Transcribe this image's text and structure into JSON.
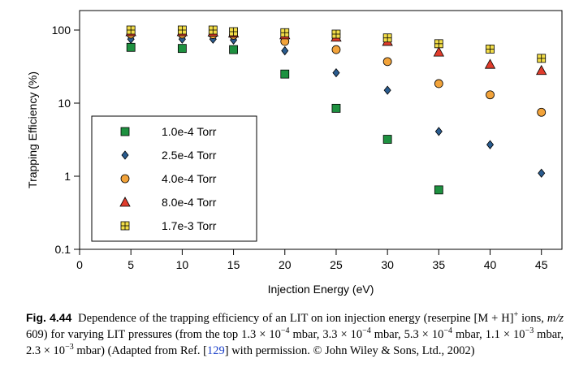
{
  "chart_data": {
    "type": "scatter",
    "xlabel": "Injection Energy (eV)",
    "ylabel": "Trapping Efficiency (%)",
    "xlim": [
      0,
      47
    ],
    "ylim": [
      0.1,
      100
    ],
    "yscale": "log",
    "xticks": [
      0,
      5,
      10,
      15,
      20,
      25,
      30,
      35,
      40,
      45
    ],
    "yticks": [
      0.1,
      1,
      10,
      100
    ],
    "ytick_labels": [
      "0.1",
      "1",
      "10",
      "100"
    ],
    "grid": false,
    "legend_position": "bottom-left",
    "series": [
      {
        "name": "1.0e-4 Torr",
        "marker": "square",
        "color": "#1e9140",
        "x": [
          5,
          10,
          15,
          20,
          25,
          30,
          35
        ],
        "y": [
          58,
          56,
          54,
          25,
          8.5,
          3.2,
          0.65
        ]
      },
      {
        "name": "2.5e-4 Torr",
        "marker": "diamond",
        "color": "#2a5c8f",
        "x": [
          5,
          10,
          13,
          15,
          20,
          25,
          30,
          35,
          40,
          45
        ],
        "y": [
          75,
          75,
          75,
          73,
          52,
          26,
          15,
          4.1,
          2.7,
          1.1
        ]
      },
      {
        "name": "4.0e-4 Torr",
        "marker": "circle",
        "color": "#f2a33a",
        "x": [
          5,
          10,
          13,
          15,
          20,
          25,
          30,
          35,
          40,
          45
        ],
        "y": [
          88,
          88,
          87,
          85,
          70,
          54,
          37,
          18.5,
          13,
          7.5
        ]
      },
      {
        "name": "8.0e-4 Torr",
        "marker": "triangle",
        "color": "#e03c2c",
        "x": [
          5,
          10,
          13,
          15,
          20,
          25,
          30,
          35,
          40,
          45
        ],
        "y": [
          95,
          95,
          94,
          91,
          86,
          80,
          70,
          50,
          34,
          28
        ]
      },
      {
        "name": "1.7e-3 Torr",
        "marker": "boxed-square",
        "color": "#f2dd48",
        "x": [
          5,
          10,
          13,
          15,
          20,
          25,
          30,
          35,
          40,
          45
        ],
        "y": [
          100,
          100,
          100,
          95,
          92,
          88,
          78,
          65,
          55,
          41
        ]
      }
    ]
  },
  "caption": {
    "label": "Fig. 4.44",
    "text_1": "Dependence of the trapping efficiency of an LIT on ion injection energy (reserpine [M + H]",
    "ion_sup": "+",
    "text_2": " ions, ",
    "mz": "m/z",
    "text_3": " 609) for varying LIT pressures (from the top 1.3 × 10",
    "exp_1": "−4",
    "text_4": " mbar, 3.3 × 10",
    "exp_2": "−4",
    "text_5": " mbar, 5.3 × 10",
    "exp_3": "−4",
    "text_6": " mbar, 1.1 × 10",
    "exp_4": "−3",
    "text_7": " mbar, 2.3 × 10",
    "exp_5": "−3",
    "text_8": " mbar) (Adapted from Ref. [",
    "ref": "129",
    "text_9": "] with permission. © John Wiley & Sons, Ltd., 2002)"
  }
}
